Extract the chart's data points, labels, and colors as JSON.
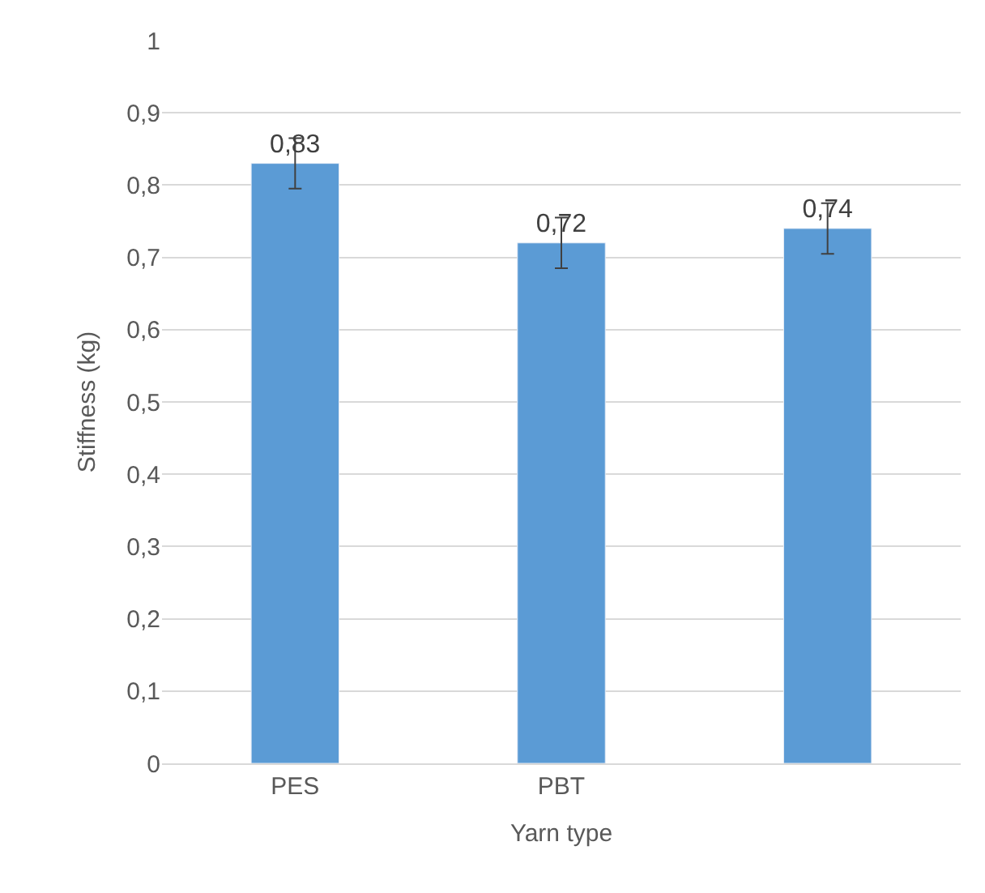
{
  "chart_data": {
    "type": "bar",
    "xlabel": "Yarn type",
    "ylabel": "Stiffness (kg)",
    "categories": [
      "PES",
      "PBT",
      null
    ],
    "values": [
      0.83,
      0.72,
      0.74
    ],
    "value_labels": [
      "0,83",
      "0,72",
      "0,74"
    ],
    "errors": [
      0.035,
      0.035,
      0.035
    ],
    "color": "#5b9bd5",
    "ylim": [
      0,
      1
    ],
    "yticks": [
      {
        "value": 0,
        "label": "0"
      },
      {
        "value": 0.1,
        "label": "0,1"
      },
      {
        "value": 0.2,
        "label": "0,2"
      },
      {
        "value": 0.3,
        "label": "0,3"
      },
      {
        "value": 0.4,
        "label": "0,4"
      },
      {
        "value": 0.5,
        "label": "0,5"
      },
      {
        "value": 0.6,
        "label": "0,6"
      },
      {
        "value": 0.7,
        "label": "0,7"
      },
      {
        "value": 0.8,
        "label": "0,8"
      },
      {
        "value": 0.9,
        "label": "0,9"
      },
      {
        "value": 1,
        "label": "1"
      }
    ],
    "grid": "y",
    "legend": false
  }
}
